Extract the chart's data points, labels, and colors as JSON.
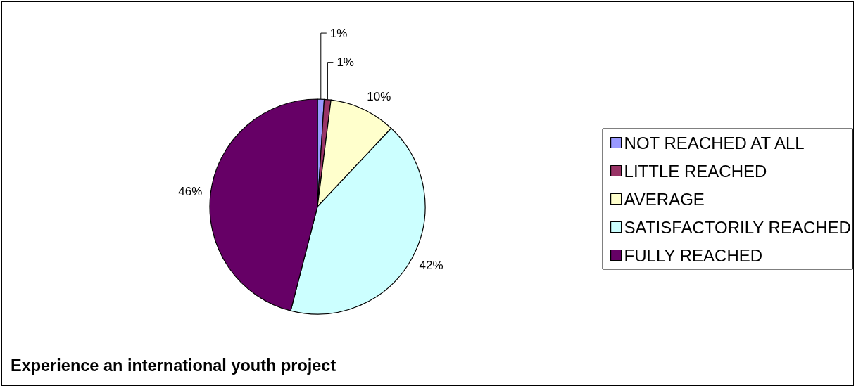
{
  "chart_data": {
    "type": "pie",
    "title": "Experience an international youth project",
    "categories": [
      "NOT REACHED AT ALL",
      "LITTLE REACHED",
      "AVERAGE",
      "SATISFACTORILY REACHED",
      "FULLY REACHED"
    ],
    "values": [
      1,
      1,
      10,
      42,
      46
    ],
    "colors": [
      "#9999ff",
      "#993366",
      "#ffffcc",
      "#ccffff",
      "#660066"
    ],
    "value_labels": [
      "1%",
      "1%",
      "10%",
      "42%",
      "46%"
    ],
    "legend": "right"
  }
}
